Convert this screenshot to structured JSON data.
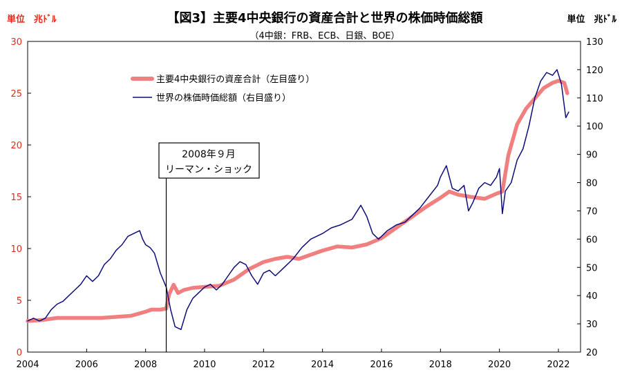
{
  "chart_data": {
    "type": "line",
    "title": "【図3】主要4中央銀行の資産合計と世界の株価時価総額",
    "subtitle": "（4中銀：FRB、ECB、日銀、BOE）",
    "unit_left": "単位　兆ﾄﾞﾙ",
    "unit_right": "単位　兆ﾄﾞﾙ",
    "x_ticks": [
      "2004",
      "2006",
      "2008",
      "2010",
      "2012",
      "2014",
      "2016",
      "2018",
      "2020",
      "2022"
    ],
    "xlim": [
      2004.0,
      2022.75
    ],
    "y_left_ticks": [
      "0",
      "5",
      "10",
      "15",
      "20",
      "25",
      "30"
    ],
    "ylim_left": [
      0,
      30
    ],
    "y_right_ticks": [
      "20",
      "30",
      "40",
      "50",
      "60",
      "70",
      "80",
      "90",
      "100",
      "110",
      "120",
      "130"
    ],
    "ylim_right": [
      20,
      130
    ],
    "grid": false,
    "legend_position": "top-left",
    "annotation": {
      "x": 2008.7,
      "line1": "2008年９月",
      "line2": "リーマン・ショック"
    },
    "colors": {
      "central_bank": "#f08080",
      "stock_market": "#0c0c7a",
      "left_axis": "#e8271c"
    },
    "series": [
      {
        "name": "主要4中央銀行の資産合計（左目盛り）",
        "axis": "left",
        "x": [
          2004.0,
          2004.5,
          2005.0,
          2005.5,
          2006.0,
          2006.5,
          2007.0,
          2007.5,
          2008.0,
          2008.2,
          2008.5,
          2008.7,
          2008.8,
          2008.95,
          2009.1,
          2009.3,
          2009.6,
          2010.0,
          2010.5,
          2011.0,
          2011.5,
          2012.0,
          2012.4,
          2012.8,
          2013.2,
          2013.6,
          2014.0,
          2014.5,
          2015.0,
          2015.5,
          2016.0,
          2016.5,
          2017.0,
          2017.5,
          2018.0,
          2018.3,
          2018.6,
          2019.0,
          2019.5,
          2019.9,
          2020.1,
          2020.3,
          2020.6,
          2020.9,
          2021.2,
          2021.5,
          2021.8,
          2022.0,
          2022.2,
          2022.3
        ],
        "values": [
          3.0,
          3.1,
          3.3,
          3.3,
          3.3,
          3.3,
          3.4,
          3.5,
          3.9,
          4.1,
          4.1,
          4.2,
          5.6,
          6.5,
          5.7,
          6.0,
          6.2,
          6.3,
          6.4,
          7.0,
          8.0,
          8.7,
          9.0,
          9.2,
          9.0,
          9.4,
          9.8,
          10.2,
          10.1,
          10.4,
          11.0,
          12.0,
          13.0,
          14.0,
          14.9,
          15.5,
          15.2,
          15.0,
          14.8,
          15.3,
          15.5,
          19.0,
          22.0,
          23.5,
          24.5,
          25.5,
          26.0,
          26.2,
          26.0,
          25.0
        ]
      },
      {
        "name": "世界の株価時価総額（右目盛り）",
        "axis": "right",
        "x": [
          2004.0,
          2004.2,
          2004.4,
          2004.6,
          2004.8,
          2005.0,
          2005.2,
          2005.4,
          2005.6,
          2005.8,
          2006.0,
          2006.2,
          2006.4,
          2006.6,
          2006.8,
          2007.0,
          2007.2,
          2007.4,
          2007.6,
          2007.8,
          2007.9,
          2008.0,
          2008.15,
          2008.3,
          2008.5,
          2008.7,
          2008.85,
          2009.0,
          2009.2,
          2009.4,
          2009.6,
          2009.8,
          2010.0,
          2010.2,
          2010.4,
          2010.6,
          2010.8,
          2011.0,
          2011.2,
          2011.4,
          2011.6,
          2011.8,
          2012.0,
          2012.2,
          2012.4,
          2012.6,
          2012.8,
          2013.0,
          2013.3,
          2013.6,
          2014.0,
          2014.3,
          2014.6,
          2015.0,
          2015.3,
          2015.5,
          2015.7,
          2015.9,
          2016.0,
          2016.2,
          2016.5,
          2016.8,
          2017.0,
          2017.3,
          2017.6,
          2017.9,
          2018.0,
          2018.2,
          2018.4,
          2018.6,
          2018.8,
          2018.95,
          2019.1,
          2019.3,
          2019.5,
          2019.7,
          2019.9,
          2020.0,
          2020.1,
          2020.2,
          2020.4,
          2020.6,
          2020.8,
          2021.0,
          2021.2,
          2021.4,
          2021.6,
          2021.8,
          2021.95,
          2022.1,
          2022.25,
          2022.35
        ],
        "values": [
          31.0,
          32.0,
          31.0,
          32.0,
          35.0,
          37.0,
          38.0,
          40.0,
          42.0,
          44.0,
          47.0,
          45.0,
          47.0,
          51.0,
          53.0,
          56.0,
          58.0,
          61.0,
          62.0,
          63.0,
          60.0,
          58.0,
          57.0,
          55.0,
          48.0,
          43.0,
          35.0,
          29.0,
          28.0,
          35.0,
          39.0,
          41.0,
          43.0,
          44.0,
          42.0,
          44.0,
          47.0,
          50.0,
          52.0,
          51.0,
          47.0,
          44.0,
          48.0,
          49.0,
          47.0,
          49.0,
          51.0,
          53.0,
          57.0,
          60.0,
          62.0,
          64.0,
          65.0,
          67.0,
          72.0,
          68.0,
          62.0,
          60.0,
          61.0,
          63.0,
          65.0,
          66.0,
          68.0,
          71.0,
          75.0,
          79.0,
          82.0,
          86.0,
          78.0,
          77.0,
          79.0,
          70.0,
          73.0,
          78.0,
          80.0,
          79.0,
          82.0,
          85.0,
          69.0,
          77.0,
          80.0,
          88.0,
          92.0,
          100.0,
          110.0,
          116.0,
          119.0,
          118.0,
          120.0,
          115.0,
          103.0,
          105.0
        ]
      }
    ]
  }
}
